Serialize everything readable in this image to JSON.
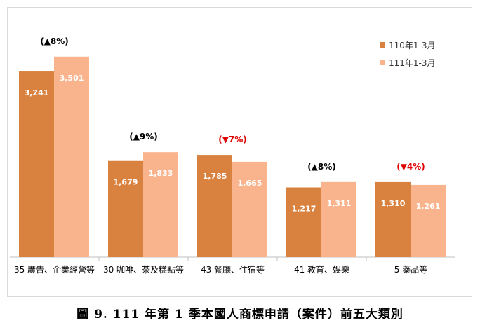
{
  "chart_data": {
    "type": "bar",
    "title": "",
    "caption": "圖 9. 111 年第 1 季本國人商標申請（案件）前五大類別",
    "xlabel": "",
    "ylabel": "",
    "ylim": [
      0,
      4000
    ],
    "grid": false,
    "legend_position": "top-right",
    "categories": [
      "35 廣告、企業經營等",
      "30 咖啡、茶及糕點等",
      "43 餐廳、住宿等",
      "41 教育、娛樂",
      "5 藥品等"
    ],
    "series": [
      {
        "name": "110年1-3月",
        "values": [
          3241,
          1679,
          1785,
          1217,
          1310
        ],
        "labels": [
          "3,241",
          "1,679",
          "1,785",
          "1,217",
          "1,310"
        ]
      },
      {
        "name": "111年1-3月",
        "values": [
          3501,
          1833,
          1665,
          1311,
          1261
        ],
        "labels": [
          "3,501",
          "1,833",
          "1,665",
          "1,311",
          "1,261"
        ]
      }
    ],
    "annotations": [
      "(▲8%)",
      "(▲9%)",
      "(▼7%)",
      "(▲8%)",
      "(▼4%)"
    ]
  },
  "colors": {
    "series1": "#d9823f",
    "series2": "#f9b48e",
    "up": "#000000",
    "down": "#e00000",
    "axis": "#bfbfbf",
    "label_text": "#ffffff"
  }
}
